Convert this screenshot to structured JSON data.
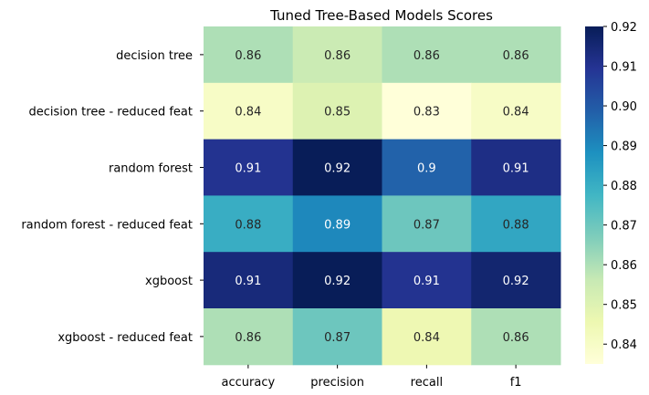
{
  "chart_data": {
    "type": "heatmap",
    "title": "Tuned Tree-Based Models Scores",
    "xlabel": "",
    "ylabel": "",
    "columns": [
      "accuracy",
      "precision",
      "recall",
      "f1"
    ],
    "rows": [
      "decision tree",
      "decision tree - reduced feat",
      "random forest",
      "random forest - reduced feat",
      "xgboost",
      "xgboost - reduced feat"
    ],
    "values": [
      [
        0.86,
        0.855,
        0.86,
        0.86
      ],
      [
        0.84,
        0.85,
        0.834,
        0.84
      ],
      [
        0.91,
        0.92,
        0.898,
        0.912
      ],
      [
        0.88,
        0.89,
        0.87,
        0.882
      ],
      [
        0.914,
        0.92,
        0.91,
        0.916
      ],
      [
        0.86,
        0.87,
        0.845,
        0.86
      ]
    ],
    "labels": [
      [
        "0.86",
        "0.86",
        "0.86",
        "0.86"
      ],
      [
        "0.84",
        "0.85",
        "0.83",
        "0.84"
      ],
      [
        "0.91",
        "0.92",
        "0.9",
        "0.91"
      ],
      [
        "0.88",
        "0.89",
        "0.87",
        "0.88"
      ],
      [
        "0.91",
        "0.92",
        "0.91",
        "0.92"
      ],
      [
        "0.86",
        "0.87",
        "0.84",
        "0.86"
      ]
    ],
    "colorbar": {
      "colormap": "YlGnBu",
      "range": [
        0.835,
        0.92
      ],
      "ticks": [
        "0.84",
        "0.85",
        "0.86",
        "0.87",
        "0.88",
        "0.89",
        "0.90",
        "0.91",
        "0.92"
      ]
    },
    "grid": false,
    "legend": "colorbar-right"
  }
}
